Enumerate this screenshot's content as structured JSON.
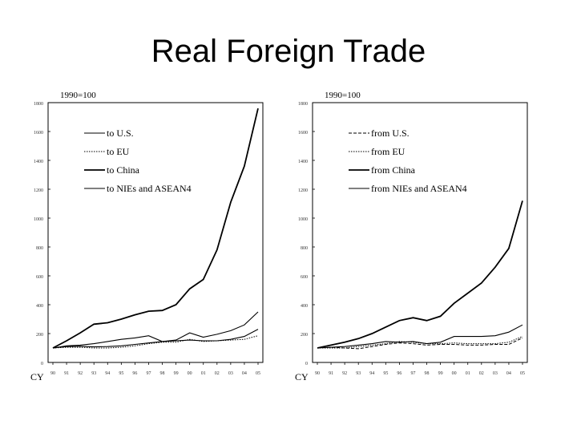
{
  "title": "Real Foreign Trade",
  "chart_data": [
    {
      "type": "line",
      "index_label": "1990=100",
      "x_prefix": "CY",
      "x": [
        "90",
        "91",
        "92",
        "93",
        "94",
        "95",
        "96",
        "97",
        "98",
        "99",
        "00",
        "01",
        "02",
        "03",
        "04",
        "05"
      ],
      "yticks": [
        0,
        200,
        400,
        600,
        800,
        1000,
        1200,
        1400,
        1600,
        1800
      ],
      "ylim": [
        0,
        1800
      ],
      "series": [
        {
          "name": "to U.S.",
          "style": "thin",
          "values": [
            100,
            110,
            112,
            108,
            110,
            115,
            125,
            135,
            145,
            150,
            155,
            150,
            150,
            160,
            180,
            230
          ]
        },
        {
          "name": "to EU",
          "style": "dotted",
          "values": [
            100,
            105,
            105,
            100,
            100,
            105,
            115,
            130,
            140,
            140,
            160,
            145,
            150,
            155,
            160,
            185
          ]
        },
        {
          "name": "to China",
          "style": "thick",
          "values": [
            100,
            150,
            205,
            265,
            275,
            300,
            330,
            355,
            360,
            400,
            510,
            575,
            780,
            1110,
            1360,
            1760
          ]
        },
        {
          "name": "to NIEs and ASEAN4",
          "style": "thin",
          "values": [
            100,
            115,
            120,
            130,
            145,
            160,
            170,
            185,
            145,
            155,
            205,
            175,
            195,
            220,
            260,
            350
          ]
        }
      ]
    },
    {
      "type": "line",
      "index_label": "1990=100",
      "x_prefix": "CY",
      "x": [
        "90",
        "91",
        "92",
        "93",
        "94",
        "95",
        "96",
        "97",
        "98",
        "99",
        "00",
        "01",
        "02",
        "03",
        "04",
        "05"
      ],
      "yticks": [
        0,
        200,
        400,
        600,
        800,
        1000,
        1200,
        1400,
        1600,
        1800
      ],
      "ylim": [
        0,
        1800
      ],
      "series": [
        {
          "name": "from U.S.",
          "style": "dashed",
          "values": [
            100,
            105,
            100,
            95,
            110,
            125,
            135,
            130,
            120,
            125,
            125,
            120,
            120,
            125,
            125,
            170
          ]
        },
        {
          "name": "from EU",
          "style": "dotted",
          "values": [
            100,
            100,
            100,
            110,
            120,
            130,
            145,
            140,
            130,
            130,
            135,
            130,
            130,
            130,
            140,
            180
          ]
        },
        {
          "name": "from China",
          "style": "thick",
          "values": [
            100,
            120,
            140,
            165,
            200,
            245,
            290,
            310,
            290,
            320,
            410,
            480,
            550,
            660,
            790,
            1120
          ]
        },
        {
          "name": "from NIEs and ASEAN4",
          "style": "thin",
          "values": [
            100,
            105,
            110,
            120,
            130,
            145,
            140,
            145,
            130,
            140,
            180,
            180,
            180,
            185,
            210,
            260
          ]
        }
      ]
    }
  ]
}
